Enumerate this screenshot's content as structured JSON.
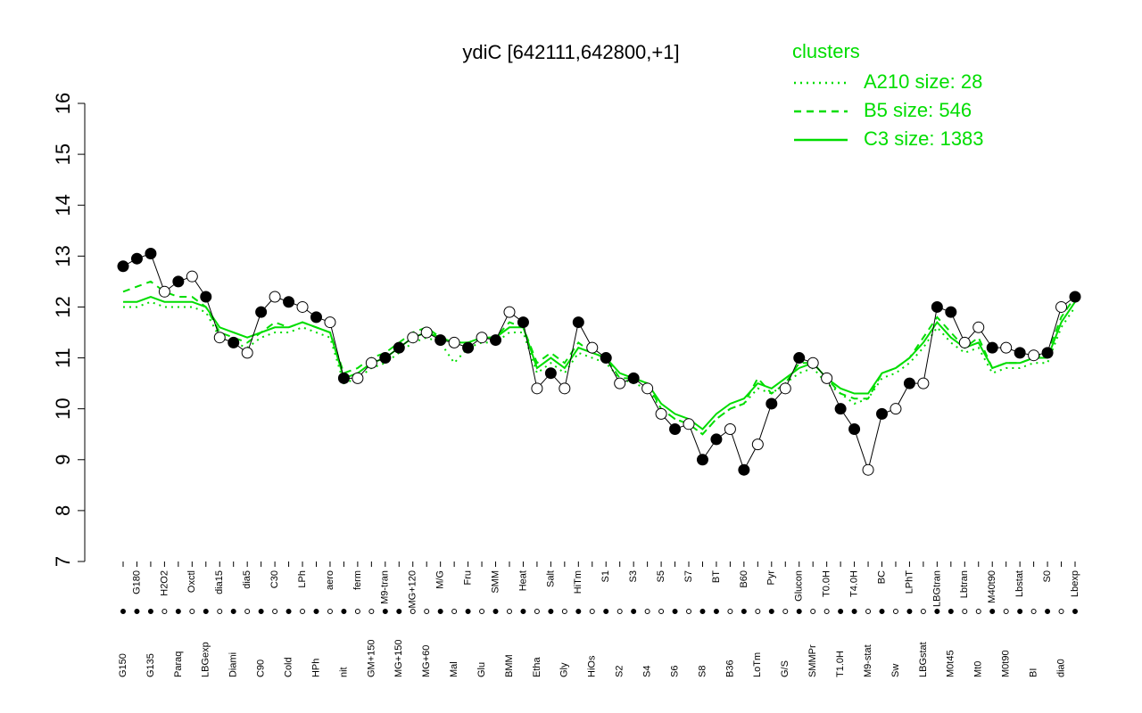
{
  "chart_data": {
    "type": "line",
    "title": "ydiC [642111,642800,+1]",
    "legend_title": "clusters",
    "legend_position": "top-right",
    "ylim": [
      7,
      16
    ],
    "yticks": [
      7,
      8,
      9,
      10,
      11,
      12,
      13,
      14,
      15,
      16
    ],
    "categories": [
      "G150",
      "G180",
      "G135",
      "H2O2",
      "Paraq",
      "Oxctl",
      "LBGexp",
      "dia15",
      "Diami",
      "dia5",
      "C90",
      "C30",
      "Cold",
      "LPh",
      "HPh",
      "aero",
      "nit",
      "ferm",
      "GM+150",
      "M9-tran",
      "MG+150",
      "MG+120",
      "MG+60",
      "M/G",
      "Mal",
      "Fru",
      "Glu",
      "SMM",
      "BMM",
      "Heat",
      "Etha",
      "Salt",
      "Gly",
      "HiTm",
      "HiOs",
      "S1",
      "S2",
      "S3",
      "S4",
      "S5",
      "S6",
      "S7",
      "S8",
      "BT",
      "B36",
      "B60",
      "LoTm",
      "Pyr",
      "G/S",
      "Glucon",
      "SMMPr",
      "T0.0H",
      "T1.0H",
      "T4.0H",
      "M9-stat",
      "BC",
      "Sw",
      "LPhT",
      "LBGstat",
      "LBGtran",
      "M0t45",
      "Lbtran",
      "Mt0",
      "M40t90",
      "M0t90",
      "Lbstat",
      "BI",
      "S0",
      "dia0",
      "Lbexp"
    ],
    "series": [
      {
        "name": "A210 size: 28",
        "color": "#00dd00",
        "style": "dotted",
        "values": [
          12.0,
          12.0,
          12.1,
          12.0,
          12.0,
          12.0,
          11.9,
          11.4,
          11.3,
          11.2,
          11.4,
          11.5,
          11.5,
          11.6,
          11.5,
          11.4,
          10.5,
          10.6,
          10.8,
          10.9,
          11.1,
          11.3,
          11.4,
          11.3,
          10.9,
          11.2,
          11.3,
          11.3,
          11.5,
          11.5,
          10.7,
          10.9,
          10.7,
          11.1,
          11.0,
          10.9,
          10.6,
          10.5,
          10.4,
          10.0,
          9.8,
          9.7,
          9.5,
          9.8,
          10.0,
          10.1,
          10.4,
          10.3,
          10.5,
          10.7,
          10.8,
          10.5,
          10.3,
          10.1,
          10.2,
          10.6,
          10.7,
          10.9,
          11.2,
          11.6,
          11.3,
          11.1,
          11.2,
          10.7,
          10.8,
          10.8,
          10.9,
          10.9,
          11.6,
          12.0
        ]
      },
      {
        "name": "B5 size: 546",
        "color": "#00dd00",
        "style": "dashed",
        "values": [
          12.3,
          12.4,
          12.5,
          12.3,
          12.2,
          12.2,
          12.0,
          11.5,
          11.4,
          11.3,
          11.5,
          11.7,
          11.6,
          11.7,
          11.6,
          11.5,
          10.7,
          10.8,
          11.0,
          11.1,
          11.3,
          11.5,
          11.6,
          11.4,
          11.3,
          11.3,
          11.4,
          11.4,
          11.7,
          11.6,
          10.9,
          11.1,
          10.9,
          11.3,
          11.1,
          11.0,
          10.6,
          10.6,
          10.5,
          10.0,
          9.8,
          9.7,
          9.5,
          9.8,
          10.0,
          10.1,
          10.6,
          10.3,
          10.5,
          10.9,
          10.9,
          10.6,
          10.3,
          10.2,
          10.2,
          10.7,
          10.8,
          11.0,
          11.4,
          11.8,
          11.5,
          11.2,
          11.4,
          10.8,
          10.9,
          10.9,
          11.0,
          11.1,
          11.8,
          12.2
        ]
      },
      {
        "name": "C3 size: 1383",
        "color": "#00dd00",
        "style": "solid",
        "values": [
          12.1,
          12.1,
          12.2,
          12.1,
          12.1,
          12.1,
          12.0,
          11.6,
          11.5,
          11.4,
          11.5,
          11.6,
          11.6,
          11.7,
          11.6,
          11.5,
          10.6,
          10.7,
          10.9,
          11.0,
          11.2,
          11.4,
          11.5,
          11.4,
          11.3,
          11.3,
          11.4,
          11.4,
          11.6,
          11.6,
          10.8,
          11.0,
          10.8,
          11.2,
          11.1,
          11.0,
          10.7,
          10.6,
          10.5,
          10.1,
          9.9,
          9.8,
          9.6,
          9.9,
          10.1,
          10.2,
          10.5,
          10.4,
          10.6,
          10.8,
          10.9,
          10.6,
          10.4,
          10.3,
          10.3,
          10.7,
          10.8,
          11.0,
          11.3,
          11.7,
          11.4,
          11.2,
          11.3,
          10.8,
          10.9,
          10.9,
          11.0,
          11.0,
          11.7,
          12.1
        ]
      }
    ],
    "gene": {
      "color": "#000000",
      "values": [
        12.8,
        12.95,
        13.05,
        12.3,
        12.5,
        12.6,
        12.2,
        11.4,
        11.3,
        11.1,
        11.9,
        12.2,
        12.1,
        12.0,
        11.8,
        11.7,
        10.6,
        10.6,
        10.9,
        11.0,
        11.2,
        11.4,
        11.5,
        11.35,
        11.3,
        11.2,
        11.4,
        11.35,
        11.9,
        11.7,
        10.4,
        10.7,
        10.4,
        11.7,
        11.2,
        11.0,
        10.5,
        10.6,
        10.4,
        9.9,
        9.6,
        9.7,
        9.0,
        9.4,
        9.6,
        8.8,
        9.3,
        10.1,
        10.4,
        11.0,
        10.9,
        10.6,
        10.0,
        9.6,
        8.8,
        9.9,
        10.0,
        10.5,
        10.5,
        12.0,
        11.9,
        11.3,
        11.6,
        11.2,
        11.2,
        11.1,
        11.05,
        11.1,
        12.0,
        12.2
      ],
      "marker_fills": [
        "#000",
        "#000",
        "#000",
        "#fff",
        "#000",
        "#fff",
        "#000",
        "#fff",
        "#000",
        "#fff",
        "#000",
        "#fff",
        "#000",
        "#fff",
        "#000",
        "#fff",
        "#000",
        "#fff",
        "#fff",
        "#000",
        "#000",
        "#fff",
        "#fff",
        "#000",
        "#fff",
        "#000",
        "#fff",
        "#000",
        "#fff",
        "#000",
        "#fff",
        "#000",
        "#fff",
        "#000",
        "#fff",
        "#000",
        "#fff",
        "#000",
        "#fff",
        "#fff",
        "#000",
        "#fff",
        "#000",
        "#000",
        "#fff",
        "#000",
        "#fff",
        "#000",
        "#fff",
        "#000",
        "#fff",
        "#fff",
        "#000",
        "#000",
        "#fff",
        "#000",
        "#fff",
        "#000",
        "#fff",
        "#000",
        "#000",
        "#fff",
        "#fff",
        "#000",
        "#fff",
        "#000",
        "#fff",
        "#000",
        "#fff",
        "#000"
      ]
    }
  }
}
